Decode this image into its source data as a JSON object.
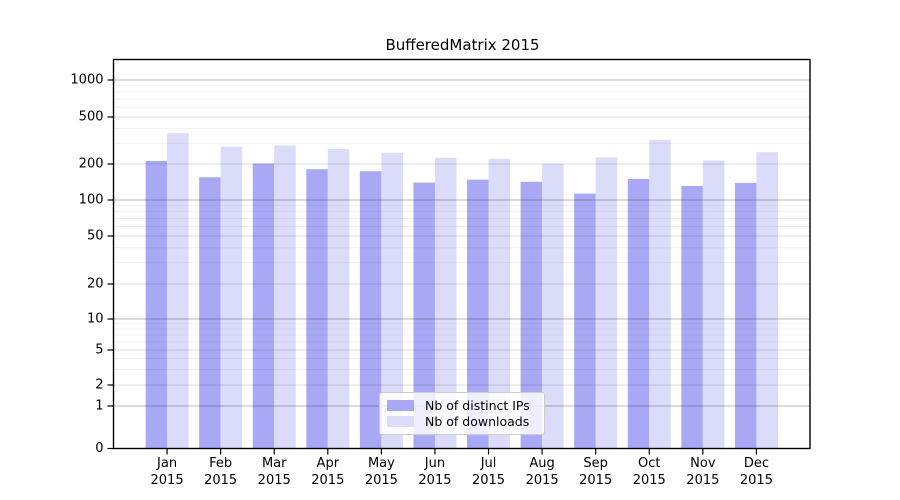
{
  "figure": {
    "title": "BufferedMatrix 2015"
  },
  "chart_data": {
    "type": "bar",
    "title": "BufferedMatrix 2015",
    "categories": [
      "Jan 2015",
      "Feb 2015",
      "Mar 2015",
      "Apr 2015",
      "May 2015",
      "Jun 2015",
      "Jul 2015",
      "Aug 2015",
      "Sep 2015",
      "Oct 2015",
      "Nov 2015",
      "Dec 2015"
    ],
    "series": [
      {
        "name": "Nb of distinct IPs",
        "color": "#a8a8f4",
        "values": [
          212,
          155,
          202,
          181,
          174,
          140,
          148,
          142,
          113,
          150,
          131,
          139
        ]
      },
      {
        "name": "Nb of downloads",
        "color": "#dbdbfa",
        "values": [
          365,
          280,
          287,
          268,
          249,
          226,
          221,
          201,
          228,
          320,
          214,
          252
        ]
      }
    ],
    "xlabel": "",
    "ylabel": "",
    "yscale": "symlog",
    "yticks": [
      0,
      1,
      2,
      5,
      10,
      20,
      50,
      100,
      200,
      500,
      1000
    ],
    "ylim": [
      0,
      1500
    ],
    "grid": true,
    "legend": {
      "position": "lower center",
      "labels": [
        "Nb of distinct IPs",
        "Nb of downloads"
      ]
    }
  }
}
